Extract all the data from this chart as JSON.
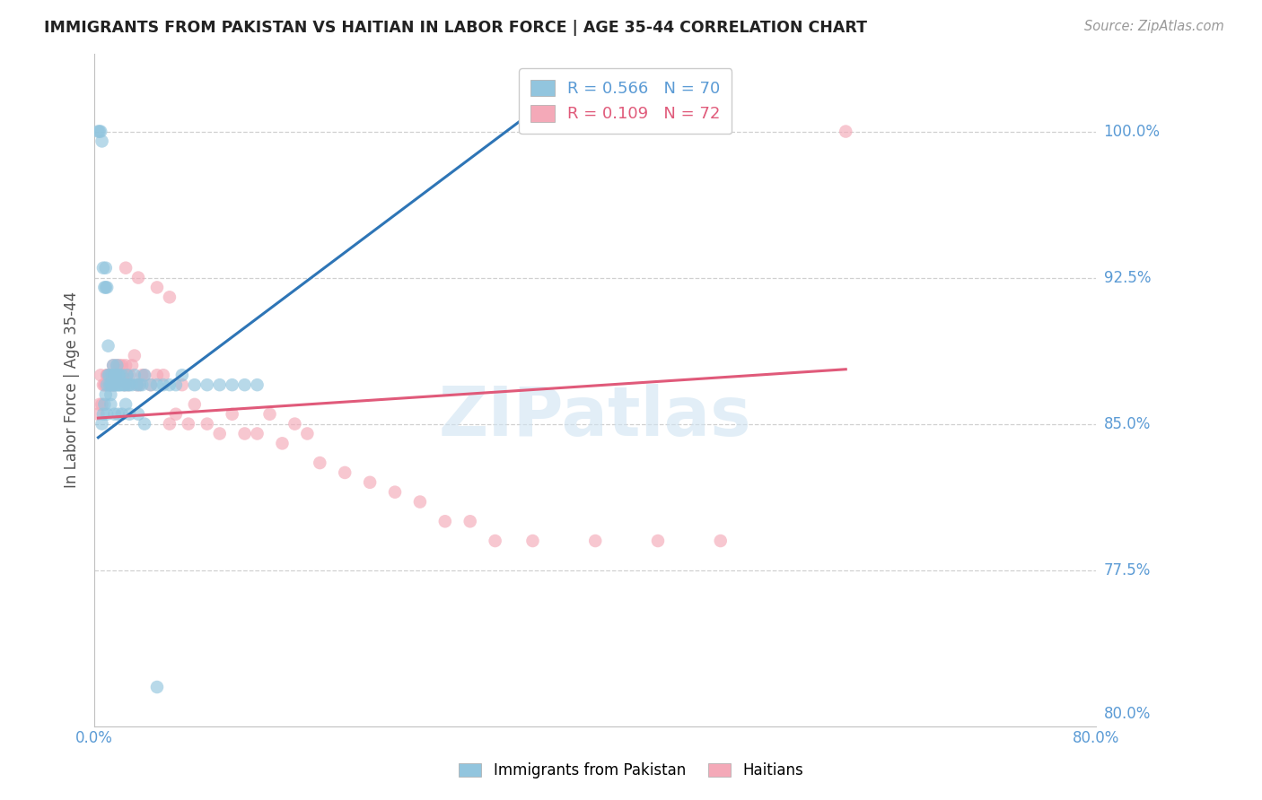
{
  "title": "IMMIGRANTS FROM PAKISTAN VS HAITIAN IN LABOR FORCE | AGE 35-44 CORRELATION CHART",
  "source": "Source: ZipAtlas.com",
  "ylabel": "In Labor Force | Age 35-44",
  "xlim": [
    0.0,
    0.8
  ],
  "ylim": [
    0.695,
    1.04
  ],
  "yticks": [
    0.775,
    0.85,
    0.925,
    1.0
  ],
  "ytick_labels": [
    "77.5%",
    "85.0%",
    "92.5%",
    "100.0%"
  ],
  "xtick_labels": [
    "0.0%",
    "",
    "",
    "",
    "",
    "",
    "",
    "",
    "80.0%"
  ],
  "pakistan_color": "#92c5de",
  "haiti_color": "#f4a9b8",
  "pakistan_R": 0.566,
  "pakistan_N": 70,
  "haiti_R": 0.109,
  "haiti_N": 72,
  "legend_pakistan": "Immigrants from Pakistan",
  "legend_haiti": "Haitians",
  "axis_label_color": "#5b9bd5",
  "watermark": "ZIPatlas",
  "pakistan_x": [
    0.003,
    0.004,
    0.005,
    0.006,
    0.006,
    0.007,
    0.007,
    0.008,
    0.008,
    0.009,
    0.009,
    0.009,
    0.01,
    0.01,
    0.011,
    0.011,
    0.012,
    0.012,
    0.013,
    0.013,
    0.014,
    0.014,
    0.015,
    0.015,
    0.016,
    0.016,
    0.017,
    0.017,
    0.018,
    0.018,
    0.019,
    0.019,
    0.02,
    0.02,
    0.021,
    0.022,
    0.023,
    0.024,
    0.025,
    0.026,
    0.027,
    0.028,
    0.03,
    0.032,
    0.034,
    0.036,
    0.038,
    0.04,
    0.045,
    0.05,
    0.055,
    0.06,
    0.065,
    0.07,
    0.08,
    0.09,
    0.1,
    0.11,
    0.12,
    0.13,
    0.01,
    0.013,
    0.016,
    0.019,
    0.022,
    0.025,
    0.028,
    0.035,
    0.04,
    0.05
  ],
  "pakistan_y": [
    1.0,
    1.0,
    1.0,
    0.995,
    0.85,
    0.93,
    0.855,
    0.92,
    0.86,
    0.92,
    0.93,
    0.865,
    0.92,
    0.87,
    0.89,
    0.875,
    0.875,
    0.87,
    0.865,
    0.87,
    0.87,
    0.875,
    0.87,
    0.88,
    0.87,
    0.875,
    0.87,
    0.875,
    0.87,
    0.88,
    0.87,
    0.875,
    0.875,
    0.87,
    0.87,
    0.875,
    0.87,
    0.87,
    0.87,
    0.875,
    0.87,
    0.87,
    0.87,
    0.875,
    0.87,
    0.87,
    0.87,
    0.875,
    0.87,
    0.87,
    0.87,
    0.87,
    0.87,
    0.875,
    0.87,
    0.87,
    0.87,
    0.87,
    0.87,
    0.87,
    0.855,
    0.86,
    0.855,
    0.855,
    0.855,
    0.86,
    0.855,
    0.855,
    0.85,
    0.715
  ],
  "haiti_x": [
    0.003,
    0.004,
    0.005,
    0.006,
    0.007,
    0.008,
    0.009,
    0.01,
    0.01,
    0.011,
    0.012,
    0.013,
    0.014,
    0.015,
    0.015,
    0.016,
    0.016,
    0.017,
    0.018,
    0.018,
    0.019,
    0.019,
    0.02,
    0.02,
    0.021,
    0.022,
    0.023,
    0.024,
    0.025,
    0.026,
    0.027,
    0.028,
    0.03,
    0.032,
    0.034,
    0.036,
    0.038,
    0.04,
    0.045,
    0.05,
    0.055,
    0.06,
    0.065,
    0.07,
    0.075,
    0.08,
    0.09,
    0.1,
    0.11,
    0.12,
    0.13,
    0.14,
    0.15,
    0.16,
    0.17,
    0.18,
    0.2,
    0.22,
    0.24,
    0.26,
    0.28,
    0.3,
    0.32,
    0.35,
    0.4,
    0.45,
    0.5,
    0.6,
    0.025,
    0.035,
    0.05,
    0.06
  ],
  "haiti_y": [
    0.855,
    0.86,
    0.875,
    0.86,
    0.87,
    0.87,
    0.87,
    0.875,
    0.875,
    0.875,
    0.87,
    0.875,
    0.87,
    0.88,
    0.875,
    0.875,
    0.87,
    0.875,
    0.88,
    0.875,
    0.875,
    0.875,
    0.88,
    0.875,
    0.875,
    0.88,
    0.875,
    0.87,
    0.88,
    0.875,
    0.87,
    0.875,
    0.88,
    0.885,
    0.87,
    0.87,
    0.875,
    0.875,
    0.87,
    0.875,
    0.875,
    0.85,
    0.855,
    0.87,
    0.85,
    0.86,
    0.85,
    0.845,
    0.855,
    0.845,
    0.845,
    0.855,
    0.84,
    0.85,
    0.845,
    0.83,
    0.825,
    0.82,
    0.815,
    0.81,
    0.8,
    0.8,
    0.79,
    0.79,
    0.79,
    0.79,
    0.79,
    1.0,
    0.93,
    0.925,
    0.92,
    0.915
  ],
  "pak_trend_x": [
    0.003,
    0.36
  ],
  "pak_trend_y": [
    0.843,
    1.015
  ],
  "hat_trend_x": [
    0.003,
    0.6
  ],
  "hat_trend_y": [
    0.853,
    0.878
  ]
}
